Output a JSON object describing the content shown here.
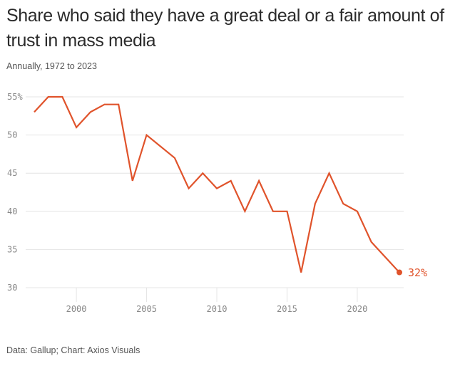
{
  "header": {
    "title": "Share who said they have a great deal or a fair amount of trust in mass media",
    "subtitle": "Annually, 1972 to 2023"
  },
  "footer": {
    "source": "Data: Gallup; Chart: Axios Visuals"
  },
  "colors": {
    "series": "#e0532b",
    "grid": "#e4e4e4",
    "axis_text": "#888888"
  },
  "chart_data": {
    "type": "line",
    "title": "Share who said they have a great deal or a fair amount of trust in mass media",
    "subtitle": "Annually, 1972 to 2023",
    "xlabel": "",
    "ylabel": "",
    "x": [
      1997,
      1998,
      1999,
      2000,
      2001,
      2002,
      2003,
      2004,
      2005,
      2007,
      2008,
      2009,
      2010,
      2011,
      2012,
      2013,
      2014,
      2015,
      2016,
      2017,
      2018,
      2019,
      2020,
      2021,
      2023
    ],
    "series": [
      {
        "name": "Trust in mass media",
        "values": [
          53,
          55,
          55,
          51,
          53,
          54,
          54,
          44,
          50,
          47,
          43,
          45,
          43,
          44,
          40,
          44,
          40,
          40,
          32,
          41,
          45,
          41,
          40,
          36,
          32
        ]
      }
    ],
    "ylim": [
      30,
      55
    ],
    "xlim": [
      1997,
      2023
    ],
    "y_ticks": [
      {
        "value": 55,
        "label": "55%"
      },
      {
        "value": 50,
        "label": "50"
      },
      {
        "value": 45,
        "label": "45"
      },
      {
        "value": 40,
        "label": "40"
      },
      {
        "value": 35,
        "label": "35"
      },
      {
        "value": 30,
        "label": "30"
      }
    ],
    "x_ticks": [
      {
        "value": 2000,
        "label": "2000"
      },
      {
        "value": 2005,
        "label": "2005"
      },
      {
        "value": 2010,
        "label": "2010"
      },
      {
        "value": 2015,
        "label": "2015"
      },
      {
        "value": 2020,
        "label": "2020"
      }
    ],
    "grid": true,
    "legend": "none",
    "end_label": "32%"
  }
}
